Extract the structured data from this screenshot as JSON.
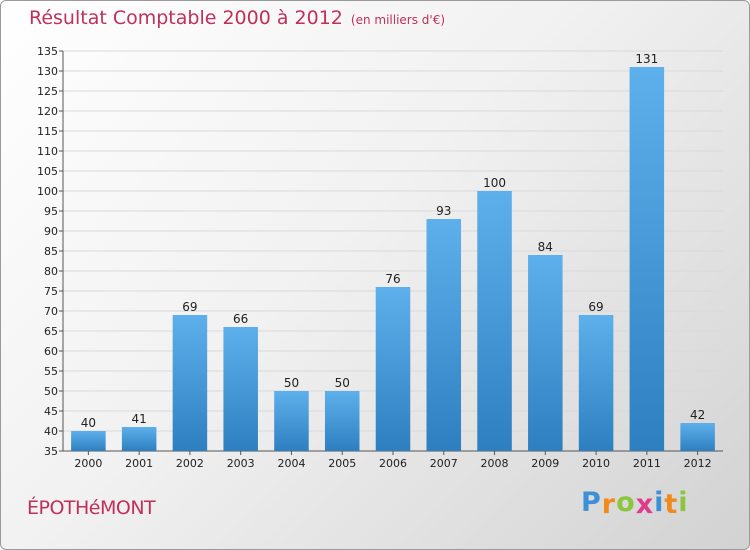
{
  "title": "Résultat Comptable 2000 à 2012",
  "subtitle": "(en milliers d'€)",
  "commune": "ÉPOTHéMONT",
  "logo": {
    "text": "Proxiti",
    "letter_colors": [
      "#3d8fd6",
      "#f08a1c",
      "#8cc63e",
      "#e03a8c",
      "#3d8fd6",
      "#f08a1c",
      "#8cc63e"
    ]
  },
  "colors": {
    "bar_top": "#5eb0ec",
    "bar_bottom": "#2d7fc0",
    "title": "#c0305a"
  },
  "chart_data": {
    "type": "bar",
    "title": "Résultat Comptable 2000 à 2012",
    "subtitle": "(en milliers d'€)",
    "categories": [
      "2000",
      "2001",
      "2002",
      "2003",
      "2004",
      "2005",
      "2006",
      "2007",
      "2008",
      "2009",
      "2010",
      "2011",
      "2012"
    ],
    "values": [
      40,
      41,
      69,
      66,
      50,
      50,
      76,
      93,
      100,
      84,
      69,
      131,
      42
    ],
    "ylim": [
      35,
      135
    ],
    "ytick_step": 5,
    "grid": true,
    "legend": "none",
    "data_labels": true
  }
}
